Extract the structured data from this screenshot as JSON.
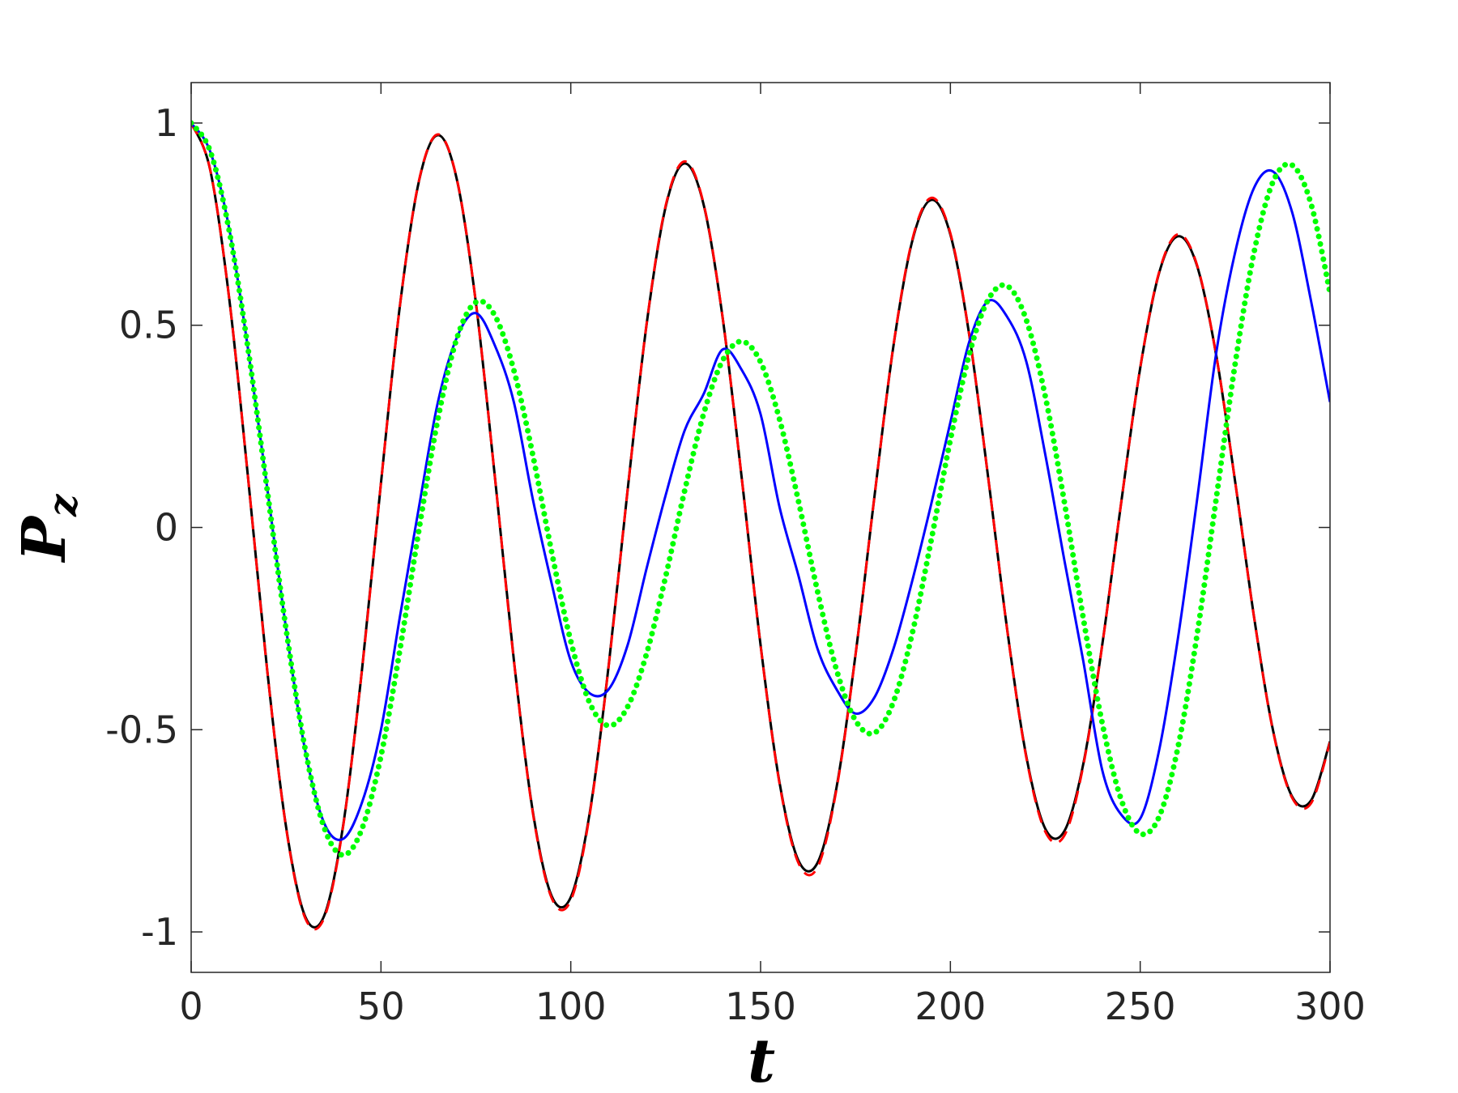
{
  "chart_data": {
    "type": "line",
    "xlabel": "t",
    "ylabel": {
      "main": "P",
      "sub": "z"
    },
    "xlim": [
      0,
      300
    ],
    "ylim": [
      -1.1,
      1.1
    ],
    "xticks": [
      0,
      50,
      100,
      150,
      200,
      250,
      300
    ],
    "yticks": [
      -1,
      -0.5,
      0,
      0.5,
      1
    ],
    "grid": false,
    "x": [
      0,
      5,
      10,
      15,
      20,
      25,
      30,
      35,
      40,
      45,
      50,
      55,
      60,
      65,
      70,
      75,
      80,
      85,
      90,
      95,
      100,
      105,
      110,
      115,
      120,
      125,
      130,
      135,
      140,
      145,
      150,
      155,
      160,
      165,
      170,
      175,
      180,
      185,
      190,
      195,
      200,
      205,
      210,
      215,
      220,
      225,
      230,
      235,
      240,
      245,
      250,
      255,
      260,
      265,
      270,
      275,
      280,
      285,
      290,
      295,
      300
    ],
    "series": [
      {
        "color": "#000000",
        "style": "solid",
        "values": [
          1,
          0.885,
          0.568,
          0.122,
          -0.35,
          -0.74,
          -0.961,
          -0.961,
          -0.739,
          -0.352,
          0.11,
          0.549,
          0.856,
          0.97,
          0.86,
          0.556,
          0.126,
          -0.327,
          -0.702,
          -0.912,
          -0.914,
          -0.705,
          -0.34,
          0.095,
          0.504,
          0.793,
          0.9,
          0.798,
          0.519,
          0.125,
          -0.291,
          -0.631,
          -0.824,
          -0.829,
          -0.643,
          -0.315,
          0.077,
          0.449,
          0.71,
          0.81,
          0.724,
          0.474,
          0.12,
          -0.255,
          -0.566,
          -0.745,
          -0.751,
          -0.585,
          -0.29,
          0.062,
          0.394,
          0.63,
          0.72,
          0.646,
          0.427,
          0.114,
          -0.222,
          -0.502,
          -0.665,
          -0.675,
          -0.529
        ]
      },
      {
        "color": "#ff0000",
        "style": "dashed",
        "values": [
          1,
          0.885,
          0.568,
          0.122,
          -0.35,
          -0.742,
          -0.965,
          -0.966,
          -0.741,
          -0.352,
          0.11,
          0.549,
          0.857,
          0.972,
          0.861,
          0.556,
          0.126,
          -0.328,
          -0.705,
          -0.917,
          -0.922,
          -0.709,
          -0.341,
          0.095,
          0.505,
          0.796,
          0.905,
          0.8,
          0.519,
          0.125,
          -0.292,
          -0.634,
          -0.83,
          -0.84,
          -0.647,
          -0.316,
          0.077,
          0.45,
          0.713,
          0.815,
          0.727,
          0.475,
          0.12,
          -0.256,
          -0.569,
          -0.752,
          -0.762,
          -0.589,
          -0.291,
          0.062,
          0.395,
          0.632,
          0.725,
          0.648,
          0.427,
          0.114,
          -0.223,
          -0.504,
          -0.668,
          -0.682,
          -0.531
        ]
      },
      {
        "color": "#0000ff",
        "style": "solid",
        "values": [
          1,
          0.93,
          0.74,
          0.44,
          0.1,
          -0.25,
          -0.55,
          -0.73,
          -0.77,
          -0.68,
          -0.5,
          -0.22,
          0.05,
          0.31,
          0.47,
          0.53,
          0.45,
          0.31,
          0.07,
          -0.14,
          -0.33,
          -0.41,
          -0.4,
          -0.29,
          -0.1,
          0.08,
          0.24,
          0.33,
          0.44,
          0.39,
          0.28,
          0.05,
          -0.12,
          -0.3,
          -0.4,
          -0.46,
          -0.42,
          -0.3,
          -0.13,
          0.06,
          0.26,
          0.46,
          0.56,
          0.52,
          0.41,
          0.18,
          -0.08,
          -0.33,
          -0.6,
          -0.71,
          -0.72,
          -0.55,
          -0.27,
          0.07,
          0.43,
          0.68,
          0.84,
          0.88,
          0.78,
          0.56,
          0.31
        ]
      },
      {
        "color": "#00ff00",
        "style": "dotted",
        "values": [
          1,
          0.931,
          0.735,
          0.441,
          0.095,
          -0.251,
          -0.546,
          -0.741,
          -0.81,
          -0.745,
          -0.565,
          -0.302,
          -0.006,
          0.268,
          0.468,
          0.557,
          0.524,
          0.389,
          0.179,
          -0.062,
          -0.281,
          -0.434,
          -0.49,
          -0.443,
          -0.311,
          -0.121,
          0.091,
          0.281,
          0.413,
          0.46,
          0.409,
          0.267,
          0.064,
          -0.158,
          -0.352,
          -0.477,
          -0.508,
          -0.431,
          -0.26,
          -0.029,
          0.217,
          0.429,
          0.564,
          0.597,
          0.513,
          0.324,
          0.064,
          -0.224,
          -0.484,
          -0.673,
          -0.757,
          -0.715,
          -0.541,
          -0.264,
          0.07,
          0.404,
          0.681,
          0.855,
          0.896,
          0.8,
          0.58
        ]
      }
    ]
  }
}
